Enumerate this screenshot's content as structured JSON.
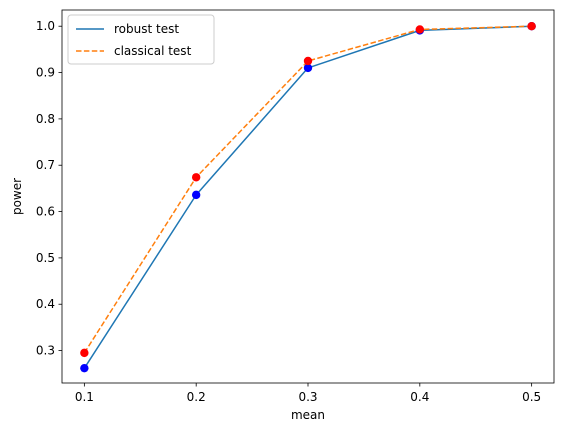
{
  "chart_data": {
    "type": "line",
    "title": "",
    "xlabel": "mean",
    "ylabel": "power",
    "x": [
      0.1,
      0.2,
      0.3,
      0.4,
      0.5
    ],
    "xlim": [
      0.08,
      0.52
    ],
    "ylim": [
      0.23,
      1.035
    ],
    "xticks": [
      0.1,
      0.2,
      0.3,
      0.4,
      0.5
    ],
    "xtick_labels": [
      "0.1",
      "0.2",
      "0.3",
      "0.4",
      "0.5"
    ],
    "yticks": [
      0.3,
      0.4,
      0.5,
      0.6,
      0.7,
      0.8,
      0.9,
      1.0
    ],
    "ytick_labels": [
      "0.3",
      "0.4",
      "0.5",
      "0.6",
      "0.7",
      "0.8",
      "0.9",
      "1.0"
    ],
    "grid": false,
    "legend_position": "top-left",
    "series": [
      {
        "name": "robust test",
        "values": [
          0.262,
          0.636,
          0.91,
          0.991,
          1.0
        ],
        "line_color": "#1f77b4",
        "line_style": "solid",
        "marker_color": "#0000ff"
      },
      {
        "name": "classical test",
        "values": [
          0.295,
          0.674,
          0.925,
          0.993,
          1.0
        ],
        "line_color": "#ff7f0e",
        "line_style": "dashed",
        "marker_color": "#ff0000"
      }
    ]
  }
}
